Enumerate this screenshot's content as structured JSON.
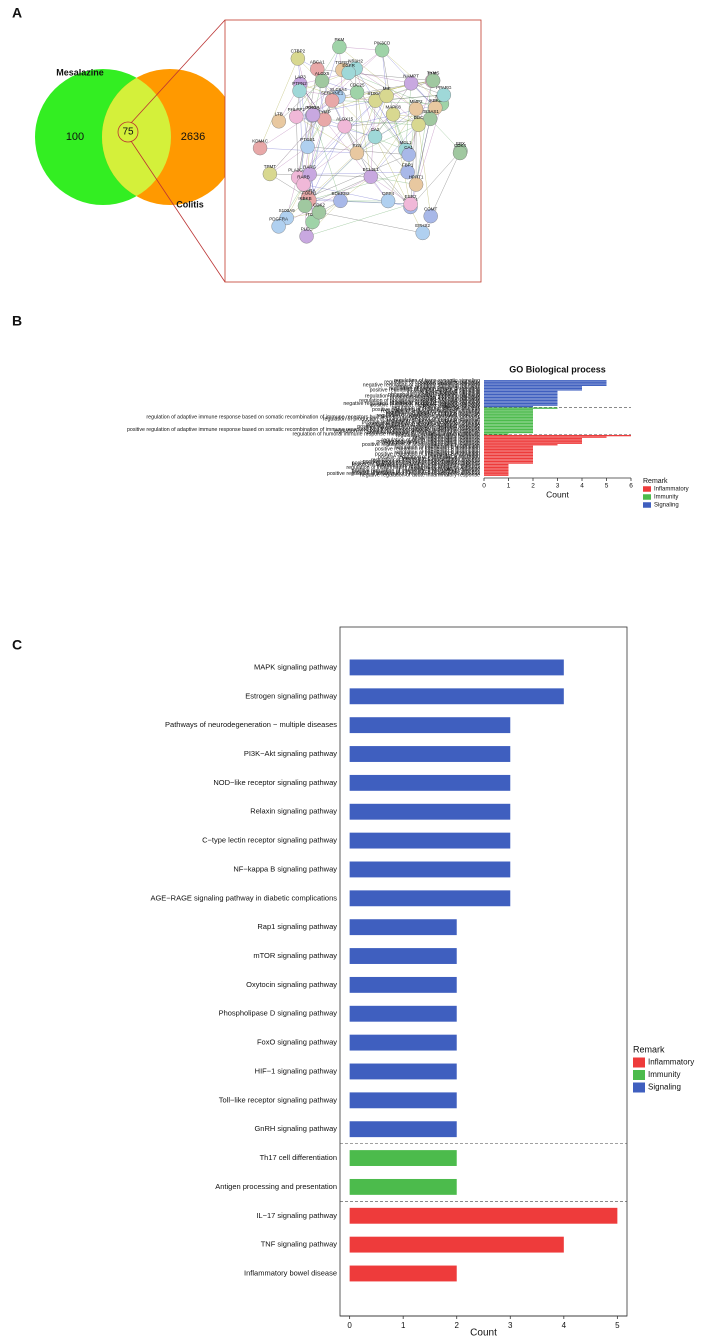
{
  "chart_data": [
    {
      "type": "venn",
      "panel": "A",
      "sets": [
        {
          "name": "Mesalazine",
          "color": "#33ee22",
          "value": 100
        },
        {
          "name": "Colitis",
          "color": "#ff9900",
          "value": 2636
        }
      ],
      "intersection": 75,
      "intersection_color": "#d4f03a"
    },
    {
      "type": "network",
      "nodes": [
        "EPX",
        "BDKRB2",
        "TGFB2",
        "PLEC",
        "NR1H2",
        "ABCA1",
        "S100A8",
        "S100A9",
        "ALOX15",
        "ALOX5",
        "MMP9",
        "ANXA1",
        "IKBKE",
        "LAP3",
        "PPARG",
        "PPARA",
        "MIF",
        "DPP4",
        "PLA2G2E",
        "TBXAS1",
        "PKM",
        "FBP1",
        "LTB",
        "RARG",
        "CA2",
        "FOLH1",
        "CTBP2",
        "PTGS1",
        "RARB",
        "IKBKB",
        "ITGAV",
        "P2RX3",
        "MMP2",
        "NAMPT",
        "PTPN2",
        "KDM4C",
        "DDC",
        "SLC6A4",
        "PHLPP2",
        "CDK2",
        "PIK3CD",
        "COMT",
        "HPRT1",
        "BCL2L1",
        "MCL1",
        "TYMP",
        "TPMT",
        "EPHX2",
        "PNP",
        "TYMS",
        "CDC25",
        "CA1",
        "FYN",
        "RHOA",
        "EGFR",
        "SERPINE1",
        "MAPK8",
        "PDGFRA",
        "ESR2",
        "CDK4"
      ]
    },
    {
      "type": "hbar",
      "panel": "B",
      "title": "GO Biological process",
      "x_label": "Count",
      "xlim": [
        0,
        6
      ],
      "xticks": [
        0,
        1,
        2,
        3,
        4,
        5,
        6
      ],
      "legend_title": "Remark",
      "legend": "right",
      "series": [
        {
          "name": "Inflammatory",
          "color": "#ee3b3b",
          "categories": [
            "regulation of inflammatory response",
            "neuroinflammatory response",
            "acute inflammatory response",
            "regulation of acute inflammatory response",
            "positive regulation of inflammatory response",
            "regulation of neuroinflammatory response",
            "positive regulation of acute inflammatory response",
            "interleukin-6 production",
            "regulation of interleukin-6 production",
            "positive regulation of interleukin-6 production",
            "interleukin-8 production",
            "regulation of interleukin-8 production",
            "positive regulation of interleukin-8 production",
            "interleukin-6 secretion",
            "positive regulation of interleukin-6 secretion",
            "interleukin-6 biosynthetic process",
            "regulation of interleukin-6 biosynthetic process",
            "positive regulation of neuroinflammatory response",
            "positive regulation of interleukin-6 biosynthetic process",
            "leukocyte activation involved in inflammatory response",
            "inflammatory response to antigenic stimulus",
            "regulation of inflammatory response to antigenic stimulus",
            "chronic inflammatory response",
            "positive regulation of interleukin-2 biosynthetic process",
            "positive regulation of interleukin-8 biosynthetic process",
            "positive regulation of inflammatory response to antigenic stimulus",
            "negative regulation of acute inflammatory response"
          ],
          "values": [
            6,
            5,
            4,
            4,
            4,
            4,
            3,
            2,
            2,
            2,
            2,
            2,
            2,
            2,
            2,
            2,
            2,
            2,
            2,
            1,
            1,
            1,
            1,
            1,
            1,
            1,
            1
          ]
        },
        {
          "name": "Immunity",
          "color": "#4cbb4c",
          "categories": [
            "regulation of immune effector process",
            "positive regulation of immune effector process",
            "regulation of leukocyte mediated immunity",
            "regulation of adaptive immune response",
            "negative regulation of immune response",
            "regulation of lymphocyte mediated immunity",
            "regulation of adaptive immune response based on somatic recombination of immune receptors built from immunoglobulin superfamily domains",
            "regulation of production of molecular mediator of immune response",
            "regulation of humoral immune response",
            "positive regulation of leukocyte mediated immunity",
            "negative regulation of immune effector process",
            "positive regulation of adaptive immune response",
            "positive regulation of lymphocyte mediated immunity",
            "cytokine production involved in immune response",
            "positive regulation of adaptive immune response based on somatic recombination of immune receptors built from immunoglobulin superfamily domains",
            "regulation of cytokine production involved in immune response",
            "positive regulation of humoral immune response",
            "regulation of humoral immune response mediated by circulating immunoglobulin"
          ],
          "values": [
            3,
            2,
            2,
            2,
            2,
            2,
            2,
            2,
            2,
            2,
            2,
            2,
            2,
            2,
            2,
            2,
            2,
            1
          ]
        },
        {
          "name": "Signaling",
          "color": "#3f5fbf",
          "categories": [
            "regulation of trans-synaptic signaling",
            "regulation of apoptotic signaling pathway",
            "protein kinase B signaling",
            "negative regulation of apoptotic signaling pathway",
            "intrinsic apoptotic signaling pathway",
            "regulation of protein kinase B signaling",
            "positive regulation of protein kinase B signaling",
            "inositol lipid-mediated signaling",
            "NIK/NF-kappaB signaling",
            "phosphatidylinositol-mediated signaling",
            "regulation of intrinsic apoptotic signaling pathway",
            "phosphatidylinositol 3-kinase signaling",
            "ERBB signaling pathway",
            "regulation of phosphatidylinositol 3-kinase signaling",
            "regulation of NIK/NF-kappaB signaling",
            "negative regulation of intrinsic apoptotic signaling pathway",
            "positive regulation of NIK/NF-kappaB signaling",
            "ERBB2 signaling pathway"
          ],
          "values": [
            5,
            5,
            5,
            5,
            4,
            4,
            4,
            3,
            3,
            3,
            3,
            3,
            3,
            3,
            3,
            3,
            3,
            2
          ]
        }
      ]
    },
    {
      "type": "hbar",
      "panel": "C",
      "x_label": "Count",
      "xlim": [
        -0.18,
        5.18
      ],
      "xticks": [
        0,
        1,
        2,
        3,
        4,
        5
      ],
      "legend_title": "Remark",
      "legend": "right",
      "series": [
        {
          "name": "Inflammatory",
          "color": "#ee3b3b",
          "categories": [
            "IL−17 signaling pathway",
            "TNF signaling pathway",
            "Inflammatory bowel disease"
          ],
          "values": [
            5,
            4,
            2
          ]
        },
        {
          "name": "Immunity",
          "color": "#4cbb4c",
          "categories": [
            "Th17 cell differentiation",
            "Antigen processing and presentation"
          ],
          "values": [
            2,
            2
          ]
        },
        {
          "name": "Signaling",
          "color": "#3f5fbf",
          "categories": [
            "MAPK signaling pathway",
            "Estrogen signaling pathway",
            "Pathways of neurodegeneration − multiple diseases",
            "PI3K−Akt signaling pathway",
            "NOD−like receptor signaling pathway",
            "Relaxin signaling pathway",
            "C−type lectin receptor signaling pathway",
            "NF−kappa B signaling pathway",
            "AGE−RAGE signaling pathway in diabetic complications",
            "Rap1 signaling pathway",
            "mTOR signaling pathway",
            "Oxytocin signaling pathway",
            "Phospholipase D signaling pathway",
            "FoxO signaling pathway",
            "HIF−1 signaling pathway",
            "Toll−like receptor signaling pathway",
            "GnRH signaling pathway"
          ],
          "values": [
            4,
            4,
            3,
            3,
            3,
            3,
            3,
            3,
            3,
            2,
            2,
            2,
            2,
            2,
            2,
            2,
            2
          ]
        }
      ]
    }
  ]
}
